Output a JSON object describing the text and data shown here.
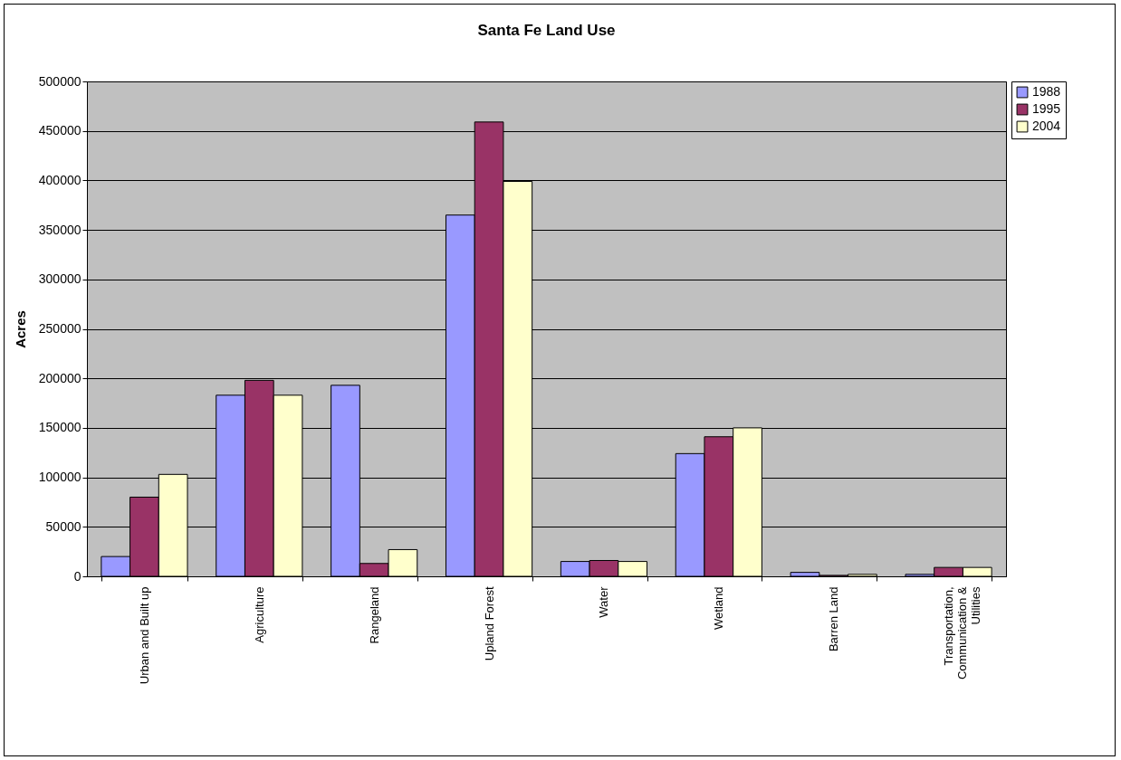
{
  "chart_data": {
    "type": "bar",
    "title": "Santa Fe Land Use",
    "ylabel": "Acres",
    "categories": [
      "Urban and Built up",
      "Agriculture",
      "Rangeland",
      "Upland Forest",
      "Water",
      "Wetland",
      "Barren Land",
      "Transportation, Communication & Utilities"
    ],
    "series": [
      {
        "name": "1988",
        "color": "#9999ff",
        "values": [
          20000,
          183000,
          193000,
          365000,
          15000,
          124000,
          4000,
          2000
        ]
      },
      {
        "name": "1995",
        "color": "#993366",
        "values": [
          80000,
          198000,
          13000,
          459000,
          16000,
          141000,
          1000,
          9000
        ]
      },
      {
        "name": "2004",
        "color": "#ffffcc",
        "values": [
          103000,
          183000,
          27000,
          399000,
          15000,
          150000,
          2000,
          9000
        ]
      }
    ],
    "ylim": [
      0,
      500000
    ],
    "yticks": [
      0,
      50000,
      100000,
      150000,
      200000,
      250000,
      300000,
      350000,
      400000,
      450000,
      500000
    ],
    "grid": "y",
    "legend": "right"
  }
}
